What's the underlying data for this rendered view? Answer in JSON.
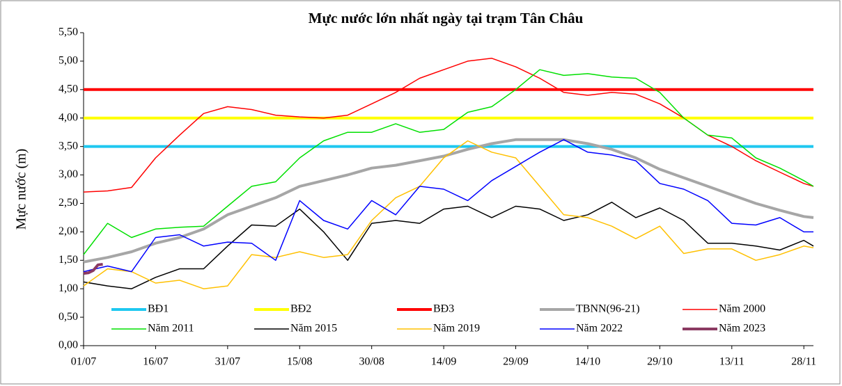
{
  "chart_data": {
    "type": "line",
    "title": "Mực nước lớn nhất ngày tại trạm Tân Châu",
    "y_label": "Mực nước (m)",
    "x": [
      0,
      5,
      10,
      15,
      20,
      25,
      30,
      35,
      40,
      45,
      50,
      55,
      60,
      65,
      70,
      75,
      80,
      85,
      90,
      95,
      100,
      105,
      110,
      115,
      120,
      125,
      130,
      135,
      140,
      145,
      150,
      152
    ],
    "xlim": [
      0,
      152
    ],
    "xticks": [
      {
        "value": 0,
        "label": "01/07"
      },
      {
        "value": 15,
        "label": "16/07"
      },
      {
        "value": 30,
        "label": "31/07"
      },
      {
        "value": 45,
        "label": "15/08"
      },
      {
        "value": 60,
        "label": "30/08"
      },
      {
        "value": 75,
        "label": "14/09"
      },
      {
        "value": 90,
        "label": "29/09"
      },
      {
        "value": 105,
        "label": "14/10"
      },
      {
        "value": 120,
        "label": "29/10"
      },
      {
        "value": 135,
        "label": "13/11"
      },
      {
        "value": 150,
        "label": "28/11"
      }
    ],
    "ylim": [
      0,
      5.5
    ],
    "yticks": [
      {
        "value": 0,
        "label": "0,00"
      },
      {
        "value": 0.5,
        "label": "0,50"
      },
      {
        "value": 1,
        "label": "1,00"
      },
      {
        "value": 1.5,
        "label": "1,50"
      },
      {
        "value": 2,
        "label": "2,00"
      },
      {
        "value": 2.5,
        "label": "2,50"
      },
      {
        "value": 3,
        "label": "3,00"
      },
      {
        "value": 3.5,
        "label": "3,50"
      },
      {
        "value": 4,
        "label": "4,00"
      },
      {
        "value": 4.5,
        "label": "4,50"
      },
      {
        "value": 5,
        "label": "5,00"
      },
      {
        "value": 5.5,
        "label": "5,50"
      }
    ],
    "series": [
      {
        "name": "BĐ1",
        "color": "#1ec8f0",
        "width": 4,
        "x": [
          0,
          152
        ],
        "values": [
          3.5,
          3.5
        ]
      },
      {
        "name": "BĐ2",
        "color": "#ffff00",
        "width": 4,
        "x": [
          0,
          152
        ],
        "values": [
          4.0,
          4.0
        ]
      },
      {
        "name": "BĐ3",
        "color": "#ff0000",
        "width": 4,
        "x": [
          0,
          152
        ],
        "values": [
          4.5,
          4.5
        ]
      },
      {
        "name": "TBNN(96-21)",
        "color": "#a6a6a6",
        "width": 4,
        "values": [
          1.47,
          1.55,
          1.65,
          1.8,
          1.9,
          2.05,
          2.3,
          2.45,
          2.6,
          2.8,
          2.9,
          3.0,
          3.12,
          3.17,
          3.25,
          3.33,
          3.45,
          3.55,
          3.62,
          3.62,
          3.62,
          3.55,
          3.45,
          3.3,
          3.1,
          2.95,
          2.8,
          2.65,
          2.5,
          2.38,
          2.27,
          2.25
        ]
      },
      {
        "name": "Năm 2000",
        "color": "#ff0000",
        "width": 1.5,
        "values": [
          2.7,
          2.72,
          2.78,
          3.3,
          3.7,
          4.08,
          4.2,
          4.15,
          4.05,
          4.02,
          4.0,
          4.05,
          4.25,
          4.45,
          4.7,
          4.85,
          5.0,
          5.05,
          4.9,
          4.7,
          4.45,
          4.4,
          4.45,
          4.42,
          4.25,
          4.0,
          3.7,
          3.5,
          3.25,
          3.05,
          2.85,
          2.8
        ]
      },
      {
        "name": "Năm 2011",
        "color": "#00e000",
        "width": 1.5,
        "values": [
          1.6,
          2.15,
          1.9,
          2.05,
          2.08,
          2.1,
          2.45,
          2.8,
          2.88,
          3.3,
          3.6,
          3.75,
          3.75,
          3.9,
          3.75,
          3.8,
          4.1,
          4.2,
          4.5,
          4.85,
          4.75,
          4.78,
          4.72,
          4.7,
          4.45,
          4.0,
          3.7,
          3.65,
          3.3,
          3.12,
          2.9,
          2.8
        ]
      },
      {
        "name": "Năm 2015",
        "color": "#000000",
        "width": 1.5,
        "values": [
          1.12,
          1.05,
          1.0,
          1.2,
          1.35,
          1.35,
          1.75,
          2.12,
          2.1,
          2.4,
          2.0,
          1.5,
          2.15,
          2.2,
          2.15,
          2.4,
          2.45,
          2.25,
          2.45,
          2.4,
          2.2,
          2.3,
          2.52,
          2.25,
          2.42,
          2.2,
          1.8,
          1.8,
          1.75,
          1.68,
          1.85,
          1.75
        ]
      },
      {
        "name": "Năm 2019",
        "color": "#ffc000",
        "width": 1.5,
        "values": [
          1.05,
          1.35,
          1.3,
          1.1,
          1.15,
          1.0,
          1.05,
          1.6,
          1.55,
          1.65,
          1.55,
          1.6,
          2.2,
          2.6,
          2.8,
          3.3,
          3.6,
          3.4,
          3.3,
          2.8,
          2.3,
          2.25,
          2.1,
          1.88,
          2.1,
          1.62,
          1.7,
          1.7,
          1.5,
          1.6,
          1.75,
          1.72
        ]
      },
      {
        "name": "Năm 2022",
        "color": "#0000ff",
        "width": 1.5,
        "values": [
          1.3,
          1.4,
          1.3,
          1.9,
          1.95,
          1.75,
          1.82,
          1.8,
          1.5,
          2.55,
          2.2,
          2.05,
          2.55,
          2.3,
          2.8,
          2.75,
          2.55,
          2.9,
          3.15,
          3.4,
          3.62,
          3.4,
          3.35,
          3.25,
          2.85,
          2.75,
          2.55,
          2.15,
          2.12,
          2.25,
          2.0,
          2.0
        ]
      },
      {
        "name": "Năm 2023",
        "color": "#8b3a62",
        "width": 4,
        "x": [
          0,
          1,
          2,
          3,
          4
        ],
        "values": [
          1.27,
          1.28,
          1.32,
          1.42,
          1.43
        ]
      }
    ]
  }
}
